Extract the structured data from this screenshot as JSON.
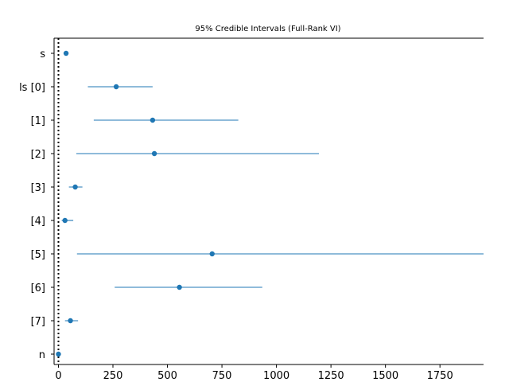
{
  "chart_data": {
    "type": "scatter",
    "title": "95% Credible Intervals (Full-Rank VI)",
    "xlabel": "",
    "ylabel": "",
    "xlim": [
      -20,
      1950
    ],
    "xticks": [
      0,
      250,
      500,
      750,
      1000,
      1250,
      1500,
      1750
    ],
    "xtick_labels": [
      "0",
      "250",
      "500",
      "750",
      "1000",
      "1250",
      "1500",
      "1750"
    ],
    "reference_line": {
      "x": 0,
      "style": "dotted"
    },
    "grid": false,
    "parameters": [
      {
        "label": "s",
        "mean": 35,
        "lower": 30,
        "upper": 40
      },
      {
        "label": "ls [0]",
        "mean": 265,
        "lower": 135,
        "upper": 432
      },
      {
        "label": "[1]",
        "mean": 432,
        "lower": 162,
        "upper": 825
      },
      {
        "label": "[2]",
        "mean": 440,
        "lower": 82,
        "upper": 1195
      },
      {
        "label": "[3]",
        "mean": 77,
        "lower": 48,
        "upper": 110
      },
      {
        "label": "[4]",
        "mean": 30,
        "lower": 15,
        "upper": 68
      },
      {
        "label": "[5]",
        "mean": 705,
        "lower": 85,
        "upper": 1950
      },
      {
        "label": "[6]",
        "mean": 555,
        "lower": 258,
        "upper": 935
      },
      {
        "label": "[7]",
        "mean": 55,
        "lower": 30,
        "upper": 90
      },
      {
        "label": "n",
        "mean": 0,
        "lower": -2,
        "upper": 2
      }
    ],
    "colors": {
      "series": "#1f77b4",
      "axis": "#000000"
    }
  }
}
